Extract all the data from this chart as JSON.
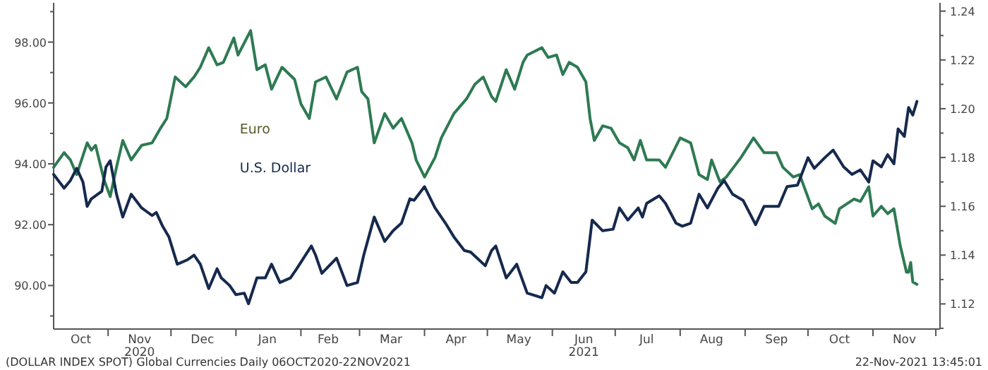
{
  "chart_data": {
    "type": "line",
    "xlim": [
      "2020-10-06",
      "2021-12-03"
    ],
    "xticks": [
      {
        "value": "2020-10-19",
        "label": "Oct"
      },
      {
        "value": "2020-11-01",
        "label": null
      },
      {
        "value": "2020-11-16",
        "label": "Nov\n2020"
      },
      {
        "value": "2020-12-01",
        "label": null
      },
      {
        "value": "2020-12-16",
        "label": "Dec"
      },
      {
        "value": "2021-01-01",
        "label": null
      },
      {
        "value": "2021-01-16",
        "label": "Jan"
      },
      {
        "value": "2021-02-01",
        "label": null
      },
      {
        "value": "2021-02-14",
        "label": "Feb"
      },
      {
        "value": "2021-03-01",
        "label": null
      },
      {
        "value": "2021-03-16",
        "label": "Mar"
      },
      {
        "value": "2021-04-01",
        "label": null
      },
      {
        "value": "2021-04-16",
        "label": "Apr"
      },
      {
        "value": "2021-05-01",
        "label": null
      },
      {
        "value": "2021-05-16",
        "label": "May"
      },
      {
        "value": "2021-06-01",
        "label": null
      },
      {
        "value": "2021-06-16",
        "label": "Jun\n2021"
      },
      {
        "value": "2021-07-01",
        "label": null
      },
      {
        "value": "2021-07-16",
        "label": "Jul"
      },
      {
        "value": "2021-08-01",
        "label": null
      },
      {
        "value": "2021-08-16",
        "label": "Aug"
      },
      {
        "value": "2021-09-01",
        "label": null
      },
      {
        "value": "2021-09-16",
        "label": "Sep"
      },
      {
        "value": "2021-10-01",
        "label": null
      },
      {
        "value": "2021-10-16",
        "label": "Oct"
      },
      {
        "value": "2021-11-01",
        "label": null
      },
      {
        "value": "2021-11-16",
        "label": "Nov"
      },
      {
        "value": "2021-12-01",
        "label": null
      }
    ],
    "ylim": [
      88.57,
      99.29
    ],
    "yticks": [
      {
        "value": 89,
        "label": null
      },
      {
        "value": 90,
        "label": "90.00"
      },
      {
        "value": 91,
        "label": null
      },
      {
        "value": 92,
        "label": "92.00"
      },
      {
        "value": 93,
        "label": null
      },
      {
        "value": 94,
        "label": "94.00"
      },
      {
        "value": 95,
        "label": null
      },
      {
        "value": 96,
        "label": "96.00"
      },
      {
        "value": 97,
        "label": null
      },
      {
        "value": 98,
        "label": "98.00"
      },
      {
        "value": 99,
        "label": null
      }
    ],
    "y2lim": [
      1.1097,
      1.2434
    ],
    "y2ticks": [
      {
        "value": 1.11,
        "label": null
      },
      1.12,
      {
        "value": 1.13,
        "label": null
      },
      1.14,
      {
        "value": 1.15,
        "label": null
      },
      1.16,
      {
        "value": 1.17,
        "label": null
      },
      1.18,
      {
        "value": 1.19,
        "label": null
      },
      {
        "value": 1.2,
        "label": "1.20"
      },
      {
        "value": 1.21,
        "label": null
      },
      1.22,
      {
        "value": 1.23,
        "label": null
      },
      1.24
    ],
    "grid": false,
    "legend": false,
    "marker": "none",
    "line_style": "solid",
    "annotations": [
      "(DOLLAR INDEX SPOT) Global Currencies  Daily 06OCT2020-22NOV2021",
      "22-Nov-2021 13:45:01"
    ],
    "series": [
      {
        "name": "Euro",
        "color": "#2e7a52",
        "axis": "y2",
        "x": [
          "2020-10-06",
          "2020-10-11",
          "2020-10-14",
          "2020-10-17",
          "2020-10-22",
          "2020-10-24",
          "2020-10-26",
          "2020-10-30",
          "2020-11-02",
          "2020-11-05",
          "2020-11-08",
          "2020-11-12",
          "2020-11-17",
          "2020-11-22",
          "2020-11-26",
          "2020-11-29",
          "2020-12-03",
          "2020-12-08",
          "2020-12-12",
          "2020-12-15",
          "2020-12-19",
          "2020-12-23",
          "2020-12-26",
          "2020-12-31",
          "2021-01-02",
          "2021-01-08",
          "2021-01-11",
          "2021-01-15",
          "2021-01-18",
          "2021-01-23",
          "2021-01-29",
          "2021-02-01",
          "2021-02-05",
          "2021-02-08",
          "2021-02-13",
          "2021-02-18",
          "2021-02-23",
          "2021-02-28",
          "2021-03-02",
          "2021-03-05",
          "2021-03-08",
          "2021-03-13",
          "2021-03-17",
          "2021-03-21",
          "2021-03-26",
          "2021-03-28",
          "2021-04-01",
          "2021-04-06",
          "2021-04-09",
          "2021-04-15",
          "2021-04-21",
          "2021-04-25",
          "2021-04-29",
          "2021-05-03",
          "2021-05-05",
          "2021-05-10",
          "2021-05-14",
          "2021-05-18",
          "2021-05-20",
          "2021-05-27",
          "2021-05-30",
          "2021-06-03",
          "2021-06-06",
          "2021-06-09",
          "2021-06-13",
          "2021-06-17",
          "2021-06-19",
          "2021-06-21",
          "2021-06-25",
          "2021-06-29",
          "2021-07-03",
          "2021-07-07",
          "2021-07-10",
          "2021-07-13",
          "2021-07-16",
          "2021-07-22",
          "2021-07-25",
          "2021-08-01",
          "2021-08-06",
          "2021-08-10",
          "2021-08-14",
          "2021-08-16",
          "2021-08-20",
          "2021-08-23",
          "2021-08-30",
          "2021-09-05",
          "2021-09-10",
          "2021-09-16",
          "2021-09-19",
          "2021-09-24",
          "2021-09-27",
          "2021-10-03",
          "2021-10-06",
          "2021-10-09",
          "2021-10-14",
          "2021-10-16",
          "2021-10-23",
          "2021-10-26",
          "2021-10-30",
          "2021-11-01",
          "2021-11-05",
          "2021-11-08",
          "2021-11-11",
          "2021-11-14",
          "2021-11-17",
          "2021-11-18",
          "2021-11-19",
          "2021-11-20",
          "2021-11-22"
        ],
        "values": [
          1.176,
          1.182,
          1.179,
          1.173,
          1.186,
          1.183,
          1.185,
          1.171,
          1.164,
          1.176,
          1.187,
          1.179,
          1.185,
          1.186,
          1.192,
          1.196,
          1.213,
          1.209,
          1.213,
          1.217,
          1.225,
          1.218,
          1.219,
          1.229,
          1.222,
          1.232,
          1.216,
          1.218,
          1.208,
          1.217,
          1.212,
          1.202,
          1.196,
          1.211,
          1.213,
          1.204,
          1.215,
          1.217,
          1.207,
          1.204,
          1.186,
          1.198,
          1.192,
          1.196,
          1.186,
          1.179,
          1.172,
          1.18,
          1.188,
          1.198,
          1.204,
          1.21,
          1.213,
          1.205,
          1.203,
          1.216,
          1.208,
          1.219,
          1.222,
          1.225,
          1.221,
          1.222,
          1.214,
          1.219,
          1.217,
          1.211,
          1.196,
          1.187,
          1.193,
          1.192,
          1.186,
          1.184,
          1.179,
          1.187,
          1.179,
          1.179,
          1.176,
          1.188,
          1.186,
          1.173,
          1.171,
          1.179,
          1.17,
          1.172,
          1.18,
          1.188,
          1.182,
          1.182,
          1.176,
          1.172,
          1.173,
          1.159,
          1.161,
          1.156,
          1.153,
          1.159,
          1.163,
          1.162,
          1.168,
          1.156,
          1.16,
          1.157,
          1.159,
          1.144,
          1.133,
          1.133,
          1.137,
          1.129,
          1.128
        ]
      },
      {
        "name": "U.S. Dollar",
        "color": "#16294d",
        "x": [
          "2020-10-06",
          "2020-10-11",
          "2020-10-14",
          "2020-10-17",
          "2020-10-20",
          "2020-10-22",
          "2020-10-24",
          "2020-10-29",
          "2020-10-31",
          "2020-11-02",
          "2020-11-05",
          "2020-11-08",
          "2020-11-12",
          "2020-11-17",
          "2020-11-22",
          "2020-11-24",
          "2020-11-27",
          "2020-11-30",
          "2020-12-04",
          "2020-12-09",
          "2020-12-12",
          "2020-12-15",
          "2020-12-19",
          "2020-12-23",
          "2020-12-25",
          "2020-12-29",
          "2021-01-01",
          "2021-01-05",
          "2021-01-07",
          "2021-01-11",
          "2021-01-15",
          "2021-01-18",
          "2021-01-22",
          "2021-01-27",
          "2021-01-30",
          "2021-02-06",
          "2021-02-08",
          "2021-02-11",
          "2021-02-18",
          "2021-02-23",
          "2021-02-28",
          "2021-03-03",
          "2021-03-08",
          "2021-03-13",
          "2021-03-17",
          "2021-03-21",
          "2021-03-25",
          "2021-03-27",
          "2021-04-01",
          "2021-04-06",
          "2021-04-11",
          "2021-04-15",
          "2021-04-20",
          "2021-04-23",
          "2021-04-30",
          "2021-05-03",
          "2021-05-05",
          "2021-05-10",
          "2021-05-15",
          "2021-05-20",
          "2021-05-27",
          "2021-05-29",
          "2021-06-02",
          "2021-06-06",
          "2021-06-10",
          "2021-06-13",
          "2021-06-17",
          "2021-06-20",
          "2021-06-25",
          "2021-06-30",
          "2021-07-03",
          "2021-07-07",
          "2021-07-12",
          "2021-07-14",
          "2021-07-16",
          "2021-07-22",
          "2021-07-25",
          "2021-07-30",
          "2021-08-02",
          "2021-08-06",
          "2021-08-10",
          "2021-08-14",
          "2021-08-19",
          "2021-08-22",
          "2021-08-26",
          "2021-08-31",
          "2021-09-06",
          "2021-09-10",
          "2021-09-17",
          "2021-09-21",
          "2021-09-26",
          "2021-10-01",
          "2021-10-04",
          "2021-10-09",
          "2021-10-13",
          "2021-10-18",
          "2021-10-22",
          "2021-10-26",
          "2021-10-30",
          "2021-11-01",
          "2021-11-05",
          "2021-11-08",
          "2021-11-11",
          "2021-11-13",
          "2021-11-16",
          "2021-11-18",
          "2021-11-20",
          "2021-11-22"
        ],
        "values": [
          93.65,
          93.2,
          93.45,
          93.85,
          93.4,
          92.6,
          92.85,
          93.1,
          93.9,
          94.1,
          93.0,
          92.25,
          93.0,
          92.55,
          92.3,
          92.4,
          91.95,
          91.6,
          90.7,
          90.85,
          91.0,
          90.7,
          89.9,
          90.55,
          90.25,
          90.0,
          89.7,
          89.75,
          89.4,
          90.25,
          90.25,
          90.7,
          90.1,
          90.25,
          90.55,
          91.3,
          91.0,
          90.4,
          90.9,
          90.0,
          90.1,
          91.0,
          92.25,
          91.45,
          91.8,
          92.05,
          92.85,
          92.8,
          93.25,
          92.55,
          92.05,
          91.6,
          91.15,
          91.1,
          90.65,
          91.15,
          91.3,
          90.25,
          90.7,
          89.75,
          89.6,
          90.0,
          89.75,
          90.45,
          90.1,
          90.1,
          90.45,
          92.15,
          91.8,
          91.85,
          92.55,
          92.15,
          92.55,
          92.25,
          92.7,
          92.95,
          92.7,
          92.05,
          91.95,
          92.05,
          93.0,
          92.55,
          93.2,
          93.45,
          93.0,
          92.8,
          92.0,
          92.6,
          92.6,
          93.25,
          93.3,
          94.2,
          93.85,
          94.2,
          94.45,
          93.9,
          93.65,
          93.8,
          93.4,
          94.1,
          93.9,
          94.3,
          94.0,
          95.15,
          94.9,
          95.85,
          95.6,
          96.05
        ]
      }
    ]
  }
}
